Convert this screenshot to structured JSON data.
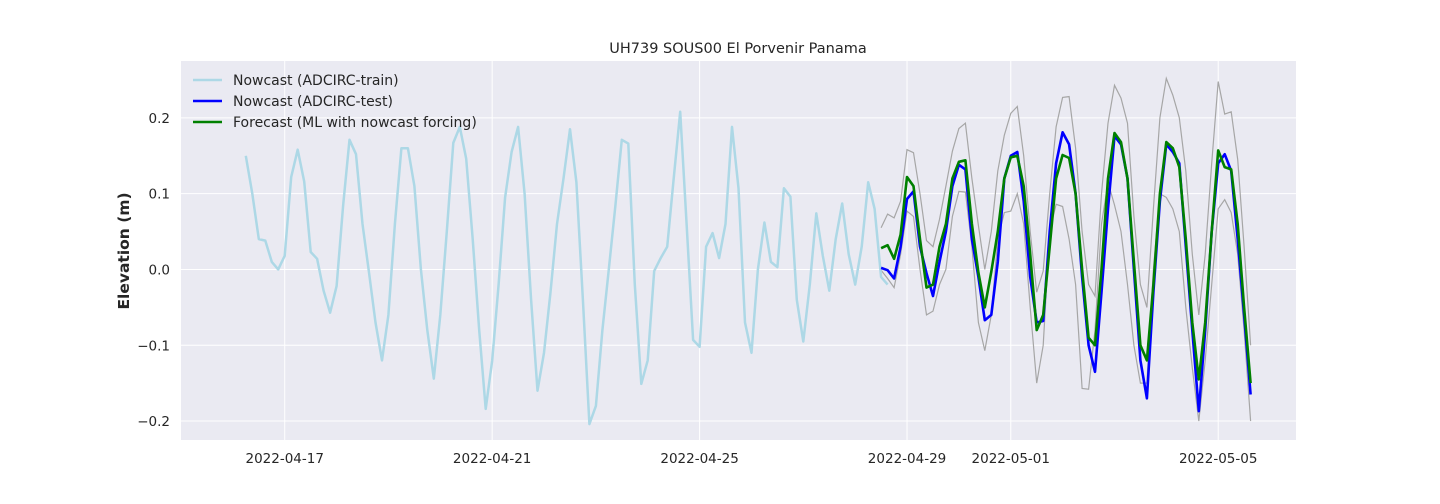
{
  "chart_data": {
    "type": "line",
    "title": "UH739 SOUS00 El Porvenir Panama",
    "xlabel": "",
    "ylabel": "Elevation (m)",
    "xlim": [
      "2022-04-15 00:00",
      "2022-05-06 12:00"
    ],
    "ylim": [
      -0.225,
      0.275
    ],
    "x_ticks": [
      "2022-04-17",
      "2022-04-21",
      "2022-04-25",
      "2022-04-29",
      "2022-05-01",
      "2022-05-05"
    ],
    "y_ticks": [
      -0.2,
      -0.1,
      0.0,
      0.1,
      0.2
    ],
    "grid": true,
    "legend_position": "top-left",
    "colors": {
      "background": "#eaeaf2",
      "grid": "#ffffff",
      "train": "#add8e6",
      "test": "#0000ff",
      "forecast": "#008000",
      "band": "#a6a6a6"
    },
    "series": [
      {
        "name": "Nowcast (ADCIRC-train)",
        "color": "#add8e6",
        "x_start": "2022-04-16 06:00",
        "step_hours": 3,
        "values": [
          0.15,
          0.1,
          0.04,
          0.038,
          0.01,
          0.0,
          0.018,
          0.122,
          0.158,
          0.116,
          0.023,
          0.014,
          -0.028,
          -0.057,
          -0.022,
          0.084,
          0.171,
          0.152,
          0.06,
          -0.004,
          -0.07,
          -0.12,
          -0.06,
          0.06,
          0.16,
          0.16,
          0.11,
          0.0,
          -0.08,
          -0.144,
          -0.06,
          0.05,
          0.167,
          0.188,
          0.146,
          0.04,
          -0.08,
          -0.184,
          -0.12,
          -0.02,
          0.095,
          0.155,
          0.188,
          0.1,
          -0.04,
          -0.16,
          -0.11,
          -0.03,
          0.06,
          0.12,
          0.185,
          0.115,
          -0.04,
          -0.204,
          -0.18,
          -0.08,
          0.0,
          0.083,
          0.171,
          0.166,
          -0.02,
          -0.151,
          -0.12,
          -0.002,
          0.015,
          0.03,
          0.12,
          0.208,
          0.06,
          -0.093,
          -0.102,
          0.03,
          0.048,
          0.015,
          0.06,
          0.188,
          0.107,
          -0.07,
          -0.11,
          0.0,
          0.062,
          0.01,
          0.003,
          0.107,
          0.096,
          -0.04,
          -0.095,
          -0.02,
          0.074,
          0.018,
          -0.028,
          0.04,
          0.087,
          0.02,
          -0.02,
          0.03,
          0.115,
          0.08,
          -0.01,
          -0.02
        ]
      },
      {
        "name": "Nowcast (ADCIRC-test)",
        "color": "#0000ff",
        "x_start": "2022-04-28 12:00",
        "step_hours": 3,
        "values": [
          0.002,
          -0.001,
          -0.012,
          0.03,
          0.093,
          0.103,
          0.03,
          -0.005,
          -0.035,
          0.01,
          0.05,
          0.11,
          0.138,
          0.132,
          0.04,
          -0.01,
          -0.067,
          -0.06,
          0.01,
          0.12,
          0.15,
          0.155,
          0.09,
          -0.01,
          -0.07,
          -0.068,
          0.05,
          0.14,
          0.181,
          0.165,
          0.1,
          -0.01,
          -0.1,
          -0.135,
          -0.03,
          0.08,
          0.176,
          0.165,
          0.12,
          0.0,
          -0.12,
          -0.17,
          -0.03,
          0.09,
          0.165,
          0.155,
          0.14,
          0.03,
          -0.08,
          -0.187,
          -0.08,
          0.05,
          0.14,
          0.152,
          0.13,
          0.04,
          -0.06,
          -0.165
        ]
      },
      {
        "name": "Forecast (ML with nowcast forcing)",
        "color": "#008000",
        "x_start": "2022-04-28 12:00",
        "step_hours": 3,
        "values": [
          0.028,
          0.032,
          0.014,
          0.046,
          0.122,
          0.11,
          0.04,
          -0.024,
          -0.02,
          0.03,
          0.06,
          0.12,
          0.142,
          0.144,
          0.06,
          -0.004,
          -0.05,
          -0.003,
          0.05,
          0.12,
          0.148,
          0.15,
          0.11,
          0.02,
          -0.08,
          -0.06,
          0.03,
          0.12,
          0.151,
          0.147,
          0.1,
          0.0,
          -0.09,
          -0.1,
          0.0,
          0.12,
          0.18,
          0.168,
          0.12,
          0.01,
          -0.1,
          -0.12,
          -0.02,
          0.1,
          0.168,
          0.16,
          0.135,
          0.04,
          -0.07,
          -0.145,
          -0.07,
          0.05,
          0.157,
          0.135,
          0.132,
          0.06,
          -0.05,
          -0.15
        ]
      }
    ],
    "bands": [
      {
        "color": "#a6a6a6",
        "x_start": "2022-04-28 12:00",
        "step_hours": 3,
        "upper": [
          0.055,
          0.073,
          0.068,
          0.09,
          0.158,
          0.154,
          0.1,
          0.038,
          0.03,
          0.066,
          0.11,
          0.156,
          0.186,
          0.193,
          0.12,
          0.058,
          0.0,
          0.05,
          0.13,
          0.177,
          0.206,
          0.215,
          0.15,
          0.05,
          -0.03,
          -0.002,
          0.1,
          0.188,
          0.227,
          0.228,
          0.16,
          0.05,
          -0.02,
          -0.035,
          0.1,
          0.193,
          0.243,
          0.226,
          0.193,
          0.07,
          -0.02,
          -0.05,
          0.08,
          0.2,
          0.252,
          0.23,
          0.2,
          0.13,
          0.02,
          -0.06,
          0.02,
          0.14,
          0.248,
          0.205,
          0.208,
          0.145,
          0.03,
          -0.1
        ],
        "lower": [
          -0.001,
          -0.012,
          -0.024,
          0.02,
          0.077,
          0.07,
          0.0,
          -0.06,
          -0.055,
          -0.02,
          0.0,
          0.07,
          0.103,
          0.102,
          0.03,
          -0.07,
          -0.107,
          -0.06,
          0.04,
          0.075,
          0.077,
          0.1,
          0.06,
          -0.05,
          -0.15,
          -0.1,
          0.05,
          0.086,
          0.083,
          0.04,
          -0.02,
          -0.157,
          -0.158,
          -0.08,
          0.06,
          0.115,
          0.085,
          0.05,
          -0.02,
          -0.1,
          -0.15,
          -0.15,
          0.0,
          0.1,
          0.095,
          0.08,
          0.05,
          -0.05,
          -0.13,
          -0.2,
          -0.12,
          -0.02,
          0.08,
          0.092,
          0.075,
          0.02,
          -0.08,
          -0.2
        ]
      }
    ]
  }
}
